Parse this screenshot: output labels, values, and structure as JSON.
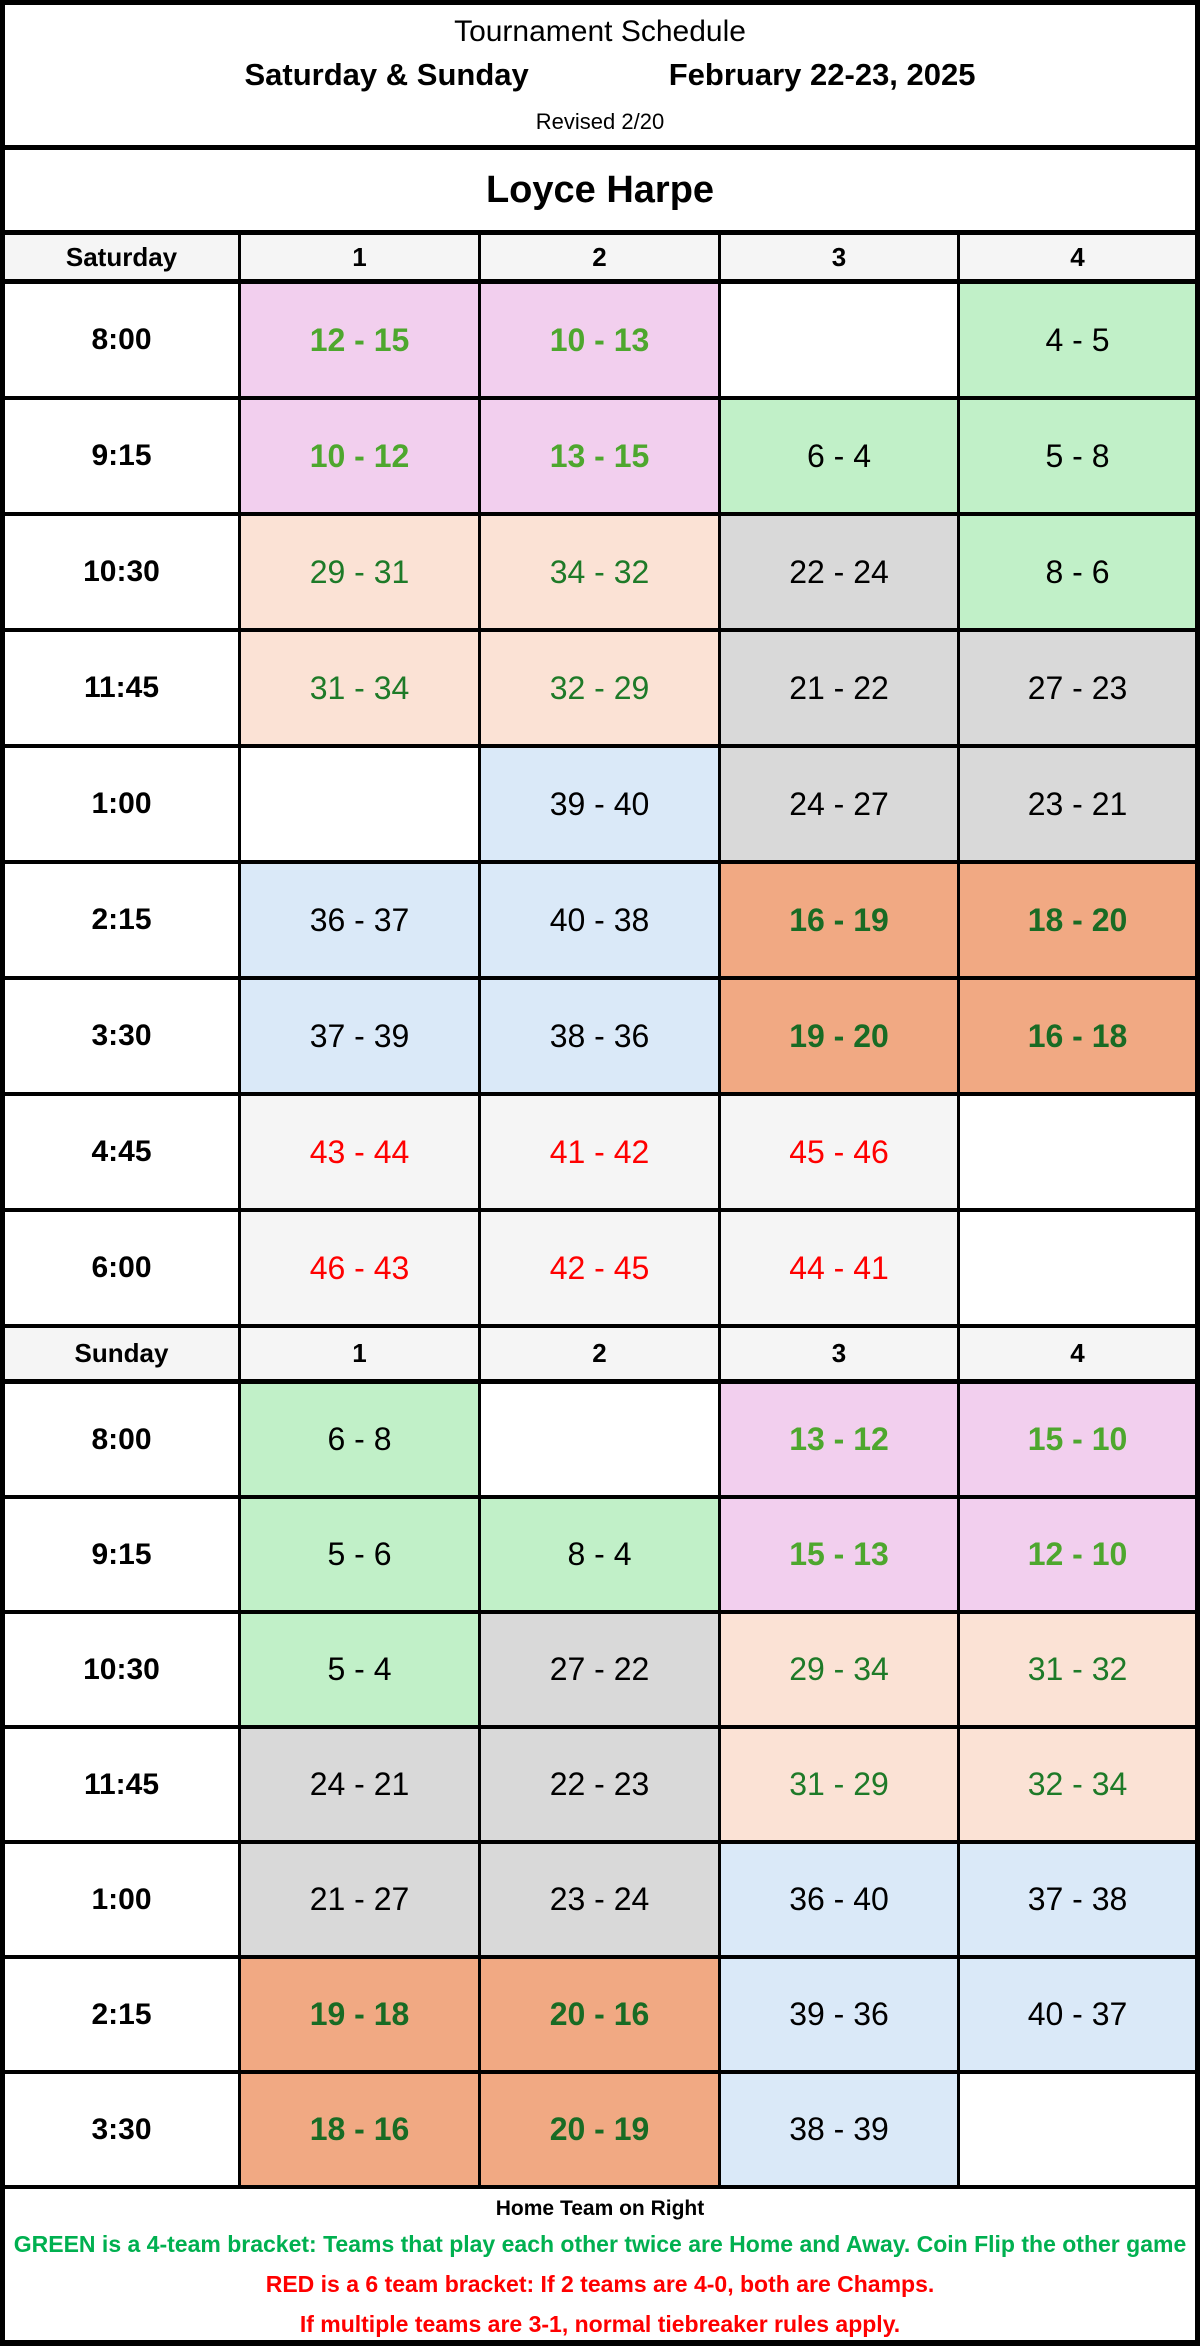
{
  "header": {
    "title": "Tournament Schedule",
    "days": "Saturday & Sunday",
    "dates": "February 22-23, 2025",
    "revised": "Revised  2/20"
  },
  "venue": "Loyce Harpe",
  "colors": {
    "pink": "#f2cfee",
    "peach": "#fbe2d5",
    "green": "#c1f0c8",
    "gray": "#d9d9d9",
    "blue": "#dae9f8",
    "orange": "#f1a983",
    "red_text": "#ff0000",
    "green_text": "#00b050"
  },
  "saturday": {
    "label": "Saturday",
    "fields": [
      "1",
      "2",
      "3",
      "4"
    ],
    "rows": [
      {
        "time": "8:00",
        "games": [
          {
            "t": "12 - 15",
            "s": "pink"
          },
          {
            "t": "10 - 13",
            "s": "pink"
          },
          {
            "t": "",
            "s": "empty"
          },
          {
            "t": "4 - 5",
            "s": "green"
          }
        ]
      },
      {
        "time": "9:15",
        "games": [
          {
            "t": "10 - 12",
            "s": "pink"
          },
          {
            "t": "13 - 15",
            "s": "pink"
          },
          {
            "t": "6 - 4",
            "s": "green"
          },
          {
            "t": "5 - 8",
            "s": "green"
          }
        ]
      },
      {
        "time": "10:30",
        "games": [
          {
            "t": "29 - 31",
            "s": "peach"
          },
          {
            "t": "34 - 32",
            "s": "peach"
          },
          {
            "t": "22 - 24",
            "s": "gray"
          },
          {
            "t": "8 - 6",
            "s": "green"
          }
        ]
      },
      {
        "time": "11:45",
        "games": [
          {
            "t": "31 - 34",
            "s": "peach"
          },
          {
            "t": "32 - 29",
            "s": "peach"
          },
          {
            "t": "21 - 22",
            "s": "gray"
          },
          {
            "t": "27 - 23",
            "s": "gray"
          }
        ]
      },
      {
        "time": "1:00",
        "games": [
          {
            "t": "",
            "s": "empty"
          },
          {
            "t": "39 - 40",
            "s": "blue"
          },
          {
            "t": "24 - 27",
            "s": "gray"
          },
          {
            "t": "23 - 21",
            "s": "gray"
          }
        ]
      },
      {
        "time": "2:15",
        "games": [
          {
            "t": "36 - 37",
            "s": "blue"
          },
          {
            "t": "40 - 38",
            "s": "blue"
          },
          {
            "t": "16 - 19",
            "s": "orange"
          },
          {
            "t": "18 - 20",
            "s": "orange"
          }
        ]
      },
      {
        "time": "3:30",
        "games": [
          {
            "t": "37 - 39",
            "s": "blue"
          },
          {
            "t": "38 - 36",
            "s": "blue"
          },
          {
            "t": "19 - 20",
            "s": "orange"
          },
          {
            "t": "16 - 18",
            "s": "orange"
          }
        ]
      },
      {
        "time": "4:45",
        "games": [
          {
            "t": "43 - 44",
            "s": "red"
          },
          {
            "t": "41 - 42",
            "s": "red"
          },
          {
            "t": "45 - 46",
            "s": "red"
          },
          {
            "t": "",
            "s": "empty"
          }
        ]
      },
      {
        "time": "6:00",
        "games": [
          {
            "t": "46 - 43",
            "s": "red"
          },
          {
            "t": "42 - 45",
            "s": "red"
          },
          {
            "t": "44 - 41",
            "s": "red"
          },
          {
            "t": "",
            "s": "empty"
          }
        ]
      }
    ]
  },
  "sunday": {
    "label": "Sunday",
    "fields": [
      "1",
      "2",
      "3",
      "4"
    ],
    "rows": [
      {
        "time": "8:00",
        "games": [
          {
            "t": "6 - 8",
            "s": "green"
          },
          {
            "t": "",
            "s": "empty"
          },
          {
            "t": "13 - 12",
            "s": "pink"
          },
          {
            "t": "15 - 10",
            "s": "pink"
          }
        ]
      },
      {
        "time": "9:15",
        "games": [
          {
            "t": "5 - 6",
            "s": "green"
          },
          {
            "t": "8 - 4",
            "s": "green"
          },
          {
            "t": "15 - 13",
            "s": "pink"
          },
          {
            "t": "12 - 10",
            "s": "pink"
          }
        ]
      },
      {
        "time": "10:30",
        "games": [
          {
            "t": "5 - 4",
            "s": "green"
          },
          {
            "t": "27 - 22",
            "s": "gray"
          },
          {
            "t": "29 - 34",
            "s": "peach"
          },
          {
            "t": "31 - 32",
            "s": "peach"
          }
        ]
      },
      {
        "time": "11:45",
        "games": [
          {
            "t": "24 - 21",
            "s": "gray"
          },
          {
            "t": "22 - 23",
            "s": "gray"
          },
          {
            "t": "31 - 29",
            "s": "peach"
          },
          {
            "t": "32 - 34",
            "s": "peach"
          }
        ]
      },
      {
        "time": "1:00",
        "games": [
          {
            "t": "21 - 27",
            "s": "gray"
          },
          {
            "t": "23 - 24",
            "s": "gray"
          },
          {
            "t": "36 - 40",
            "s": "blue"
          },
          {
            "t": "37 - 38",
            "s": "blue"
          }
        ]
      },
      {
        "time": "2:15",
        "games": [
          {
            "t": "19 - 18",
            "s": "orange"
          },
          {
            "t": "20 - 16",
            "s": "orange"
          },
          {
            "t": "39 - 36",
            "s": "blue"
          },
          {
            "t": "40 - 37",
            "s": "blue"
          }
        ]
      },
      {
        "time": "3:30",
        "games": [
          {
            "t": "18 - 16",
            "s": "orange"
          },
          {
            "t": "20 - 19",
            "s": "orange"
          },
          {
            "t": "38 - 39",
            "s": "blue"
          },
          {
            "t": "",
            "s": "empty"
          }
        ]
      }
    ]
  },
  "footer": {
    "home_note": "Home Team on Right",
    "green_note": "GREEN is a 4-team bracket:  Teams that play each other twice are Home and Away.  Coin Flip the other game",
    "red_note_1": "RED is a 6 team bracket:  If 2 teams are 4-0, both are Champs.",
    "red_note_2": "If multiple teams are 3-1, normal tiebreaker rules apply."
  }
}
